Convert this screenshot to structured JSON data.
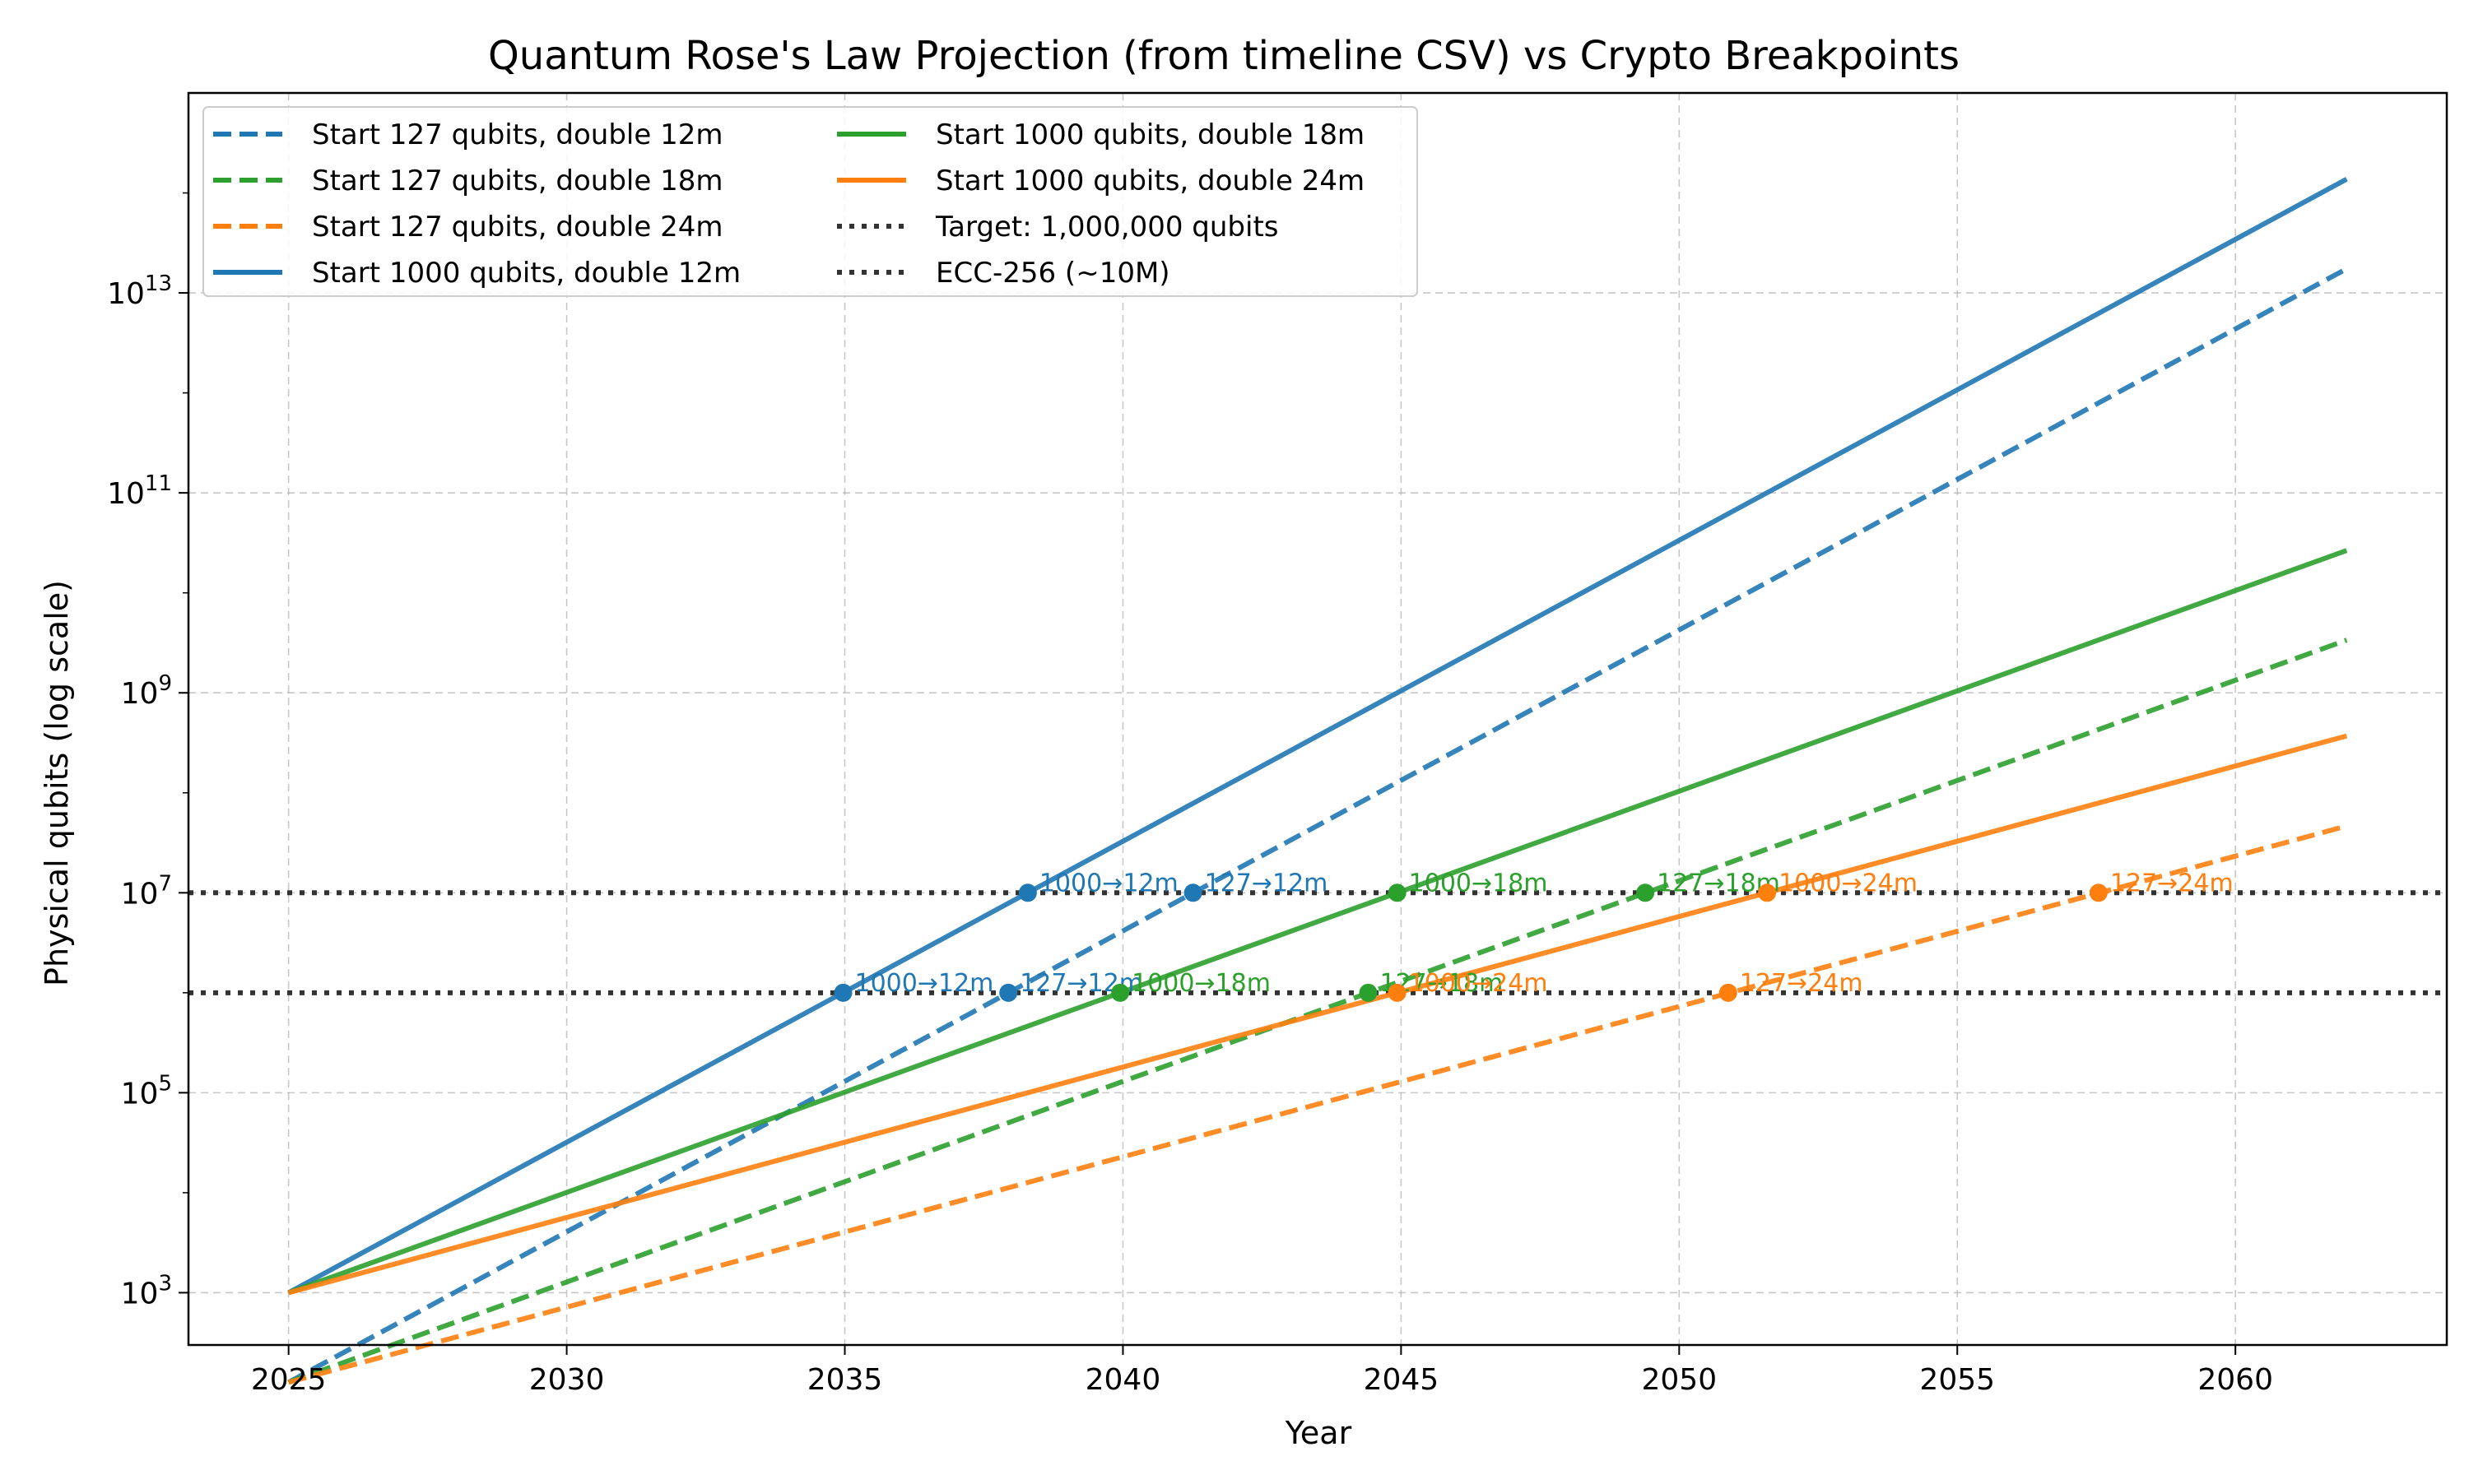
{
  "chart_data": {
    "type": "line",
    "title": "Quantum Rose's Law Projection (from timeline CSV) vs Crypto Breakpoints",
    "xlabel": "Year",
    "ylabel": "Physical qubits (log scale)",
    "xlim": [
      2023.2,
      2063.8
    ],
    "ylim": [
      300,
      1000000000000000
    ],
    "yscale": "log",
    "grid": true,
    "legend_position": "top-left",
    "xticks": [
      {
        "value": 2025,
        "label": "2025"
      },
      {
        "value": 2030,
        "label": "2030"
      },
      {
        "value": 2035,
        "label": "2035"
      },
      {
        "value": 2040,
        "label": "2040"
      },
      {
        "value": 2045,
        "label": "2045"
      },
      {
        "value": 2050,
        "label": "2050"
      },
      {
        "value": 2055,
        "label": "2055"
      },
      {
        "value": 2060,
        "label": "2060"
      }
    ],
    "yticks": [
      {
        "value": 1000,
        "base": "10",
        "exp": "3"
      },
      {
        "value": 100000,
        "base": "10",
        "exp": "5"
      },
      {
        "value": 10000000,
        "base": "10",
        "exp": "7"
      },
      {
        "value": 1000000000,
        "base": "10",
        "exp": "9"
      },
      {
        "value": 100000000000,
        "base": "10",
        "exp": "11"
      },
      {
        "value": 10000000000000,
        "base": "10",
        "exp": "13"
      }
    ],
    "series": [
      {
        "name": "Start 127 qubits, double 12m",
        "color": "#1f77b4",
        "style": "dashed",
        "x": [
          2025,
          2062
        ],
        "y": [
          127,
          17450000000000
        ]
      },
      {
        "name": "Start 127 qubits, double 18m",
        "color": "#2ca02c",
        "style": "dashed",
        "x": [
          2025,
          2062
        ],
        "y": [
          127,
          3370000000
        ]
      },
      {
        "name": "Start 127 qubits, double 24m",
        "color": "#ff7f0e",
        "style": "dashed",
        "x": [
          2025,
          2062
        ],
        "y": [
          127,
          46500000
        ]
      },
      {
        "name": "Start 1000 qubits, double 12m",
        "color": "#1f77b4",
        "style": "solid",
        "x": [
          2025,
          2062
        ],
        "y": [
          1000,
          137400000000000
        ]
      },
      {
        "name": "Start 1000 qubits, double 18m",
        "color": "#2ca02c",
        "style": "solid",
        "x": [
          2025,
          2062
        ],
        "y": [
          1000,
          26540000000
        ]
      },
      {
        "name": "Start 1000 qubits, double 24m",
        "color": "#ff7f0e",
        "style": "solid",
        "x": [
          2025,
          2062
        ],
        "y": [
          1000,
          370700000
        ]
      }
    ],
    "thresholds": [
      {
        "name": "Target: 1,000,000 qubits",
        "value": 1000000,
        "color": "#333333",
        "style": "dotted"
      },
      {
        "name": "ECC-256 (~10M)",
        "value": 10000000,
        "color": "#333333",
        "style": "dotted"
      }
    ],
    "breakpoints": [
      {
        "label": "1000→12m",
        "x": 2034.97,
        "y": 1000000,
        "color": "#1f77b4"
      },
      {
        "label": "127→12m",
        "x": 2037.94,
        "y": 1000000,
        "color": "#1f77b4"
      },
      {
        "label": "1000→18m",
        "x": 2039.95,
        "y": 1000000,
        "color": "#2ca02c"
      },
      {
        "label": "127→18m",
        "x": 2044.41,
        "y": 1000000,
        "color": "#2ca02c"
      },
      {
        "label": "1000→24m",
        "x": 2044.93,
        "y": 1000000,
        "color": "#ff7f0e"
      },
      {
        "label": "127→24m",
        "x": 2050.88,
        "y": 1000000,
        "color": "#ff7f0e"
      },
      {
        "label": "1000→12m",
        "x": 2038.29,
        "y": 10000000,
        "color": "#1f77b4"
      },
      {
        "label": "127→12m",
        "x": 2041.26,
        "y": 10000000,
        "color": "#1f77b4"
      },
      {
        "label": "1000→18m",
        "x": 2044.93,
        "y": 10000000,
        "color": "#2ca02c"
      },
      {
        "label": "127→18m",
        "x": 2049.39,
        "y": 10000000,
        "color": "#2ca02c"
      },
      {
        "label": "1000→24m",
        "x": 2051.58,
        "y": 10000000,
        "color": "#ff7f0e"
      },
      {
        "label": "127→24m",
        "x": 2057.54,
        "y": 10000000,
        "color": "#ff7f0e"
      }
    ]
  }
}
